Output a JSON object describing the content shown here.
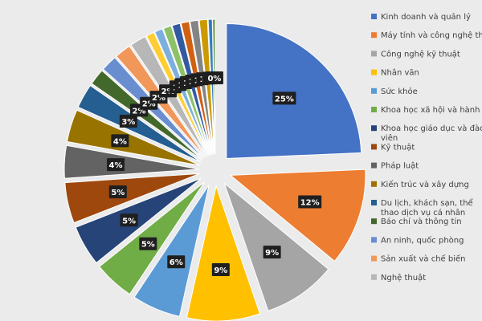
{
  "chart_data": {
    "type": "pie",
    "variant": "exploded",
    "legend_position": "right",
    "slices": [
      {
        "label": "Kinh doanh và quản lý",
        "value": 25,
        "display": "25%",
        "color": "#4472c4"
      },
      {
        "label": "Máy tính và công nghệ thôn",
        "value": 12,
        "display": "12%",
        "color": "#ed7d31"
      },
      {
        "label": "Công nghệ kỹ thuật",
        "value": 9,
        "display": "9%",
        "color": "#a5a5a5"
      },
      {
        "label": "Nhân văn",
        "value": 9,
        "display": "9%",
        "color": "#ffc000"
      },
      {
        "label": "Sức khỏe",
        "value": 6,
        "display": "6%",
        "color": "#5b9bd5"
      },
      {
        "label": "Khoa học xã hội và hành vi",
        "value": 5,
        "display": "5%",
        "color": "#70ad47"
      },
      {
        "label": "Khoa học giáo dục và đào tạ viên",
        "value": 5,
        "display": "5%",
        "color": "#264478"
      },
      {
        "label": "Kỹ thuật",
        "value": 5,
        "display": "5%",
        "color": "#9e480e"
      },
      {
        "label": "Pháp luật",
        "value": 4,
        "display": "4%",
        "color": "#636363"
      },
      {
        "label": "Kiến trúc và xây dựng",
        "value": 4,
        "display": "4%",
        "color": "#997300"
      },
      {
        "label": "Du lịch, khách sạn, thể thao dịch vụ cá nhân",
        "value": 3,
        "display": "3%",
        "color": "#255e91"
      },
      {
        "label": "Báo chí và thông tin",
        "value": 2,
        "display": "2%",
        "color": "#43682b"
      },
      {
        "label": "An ninh, quốc phòng",
        "value": 2,
        "display": "2%",
        "color": "#698ed0"
      },
      {
        "label": "Sản xuất và chế biến",
        "value": 2,
        "display": "2%",
        "color": "#f1975a"
      },
      {
        "label": "Nghệ thuật",
        "value": 2,
        "display": "2%",
        "color": "#b7b7b7"
      },
      {
        "label": "",
        "value": 1,
        "display": "1",
        "color": "#ffcd33"
      },
      {
        "label": "",
        "value": 1,
        "display": "1",
        "color": "#7cafdd"
      },
      {
        "label": "",
        "value": 1,
        "display": "1",
        "color": "#8cc168"
      },
      {
        "label": "",
        "value": 1,
        "display": "1",
        "color": "#335aa1"
      },
      {
        "label": "",
        "value": 1,
        "display": "1",
        "color": "#d26012"
      },
      {
        "label": "",
        "value": 1,
        "display": "1",
        "color": "#848484"
      },
      {
        "label": "",
        "value": 1,
        "display": "1",
        "color": "#cc9a00"
      },
      {
        "label": "",
        "value": 0.5,
        "display": "0",
        "color": "#327dc2"
      },
      {
        "label": "",
        "value": 0.3,
        "display": "0%",
        "color": "#5a8a39"
      }
    ]
  }
}
